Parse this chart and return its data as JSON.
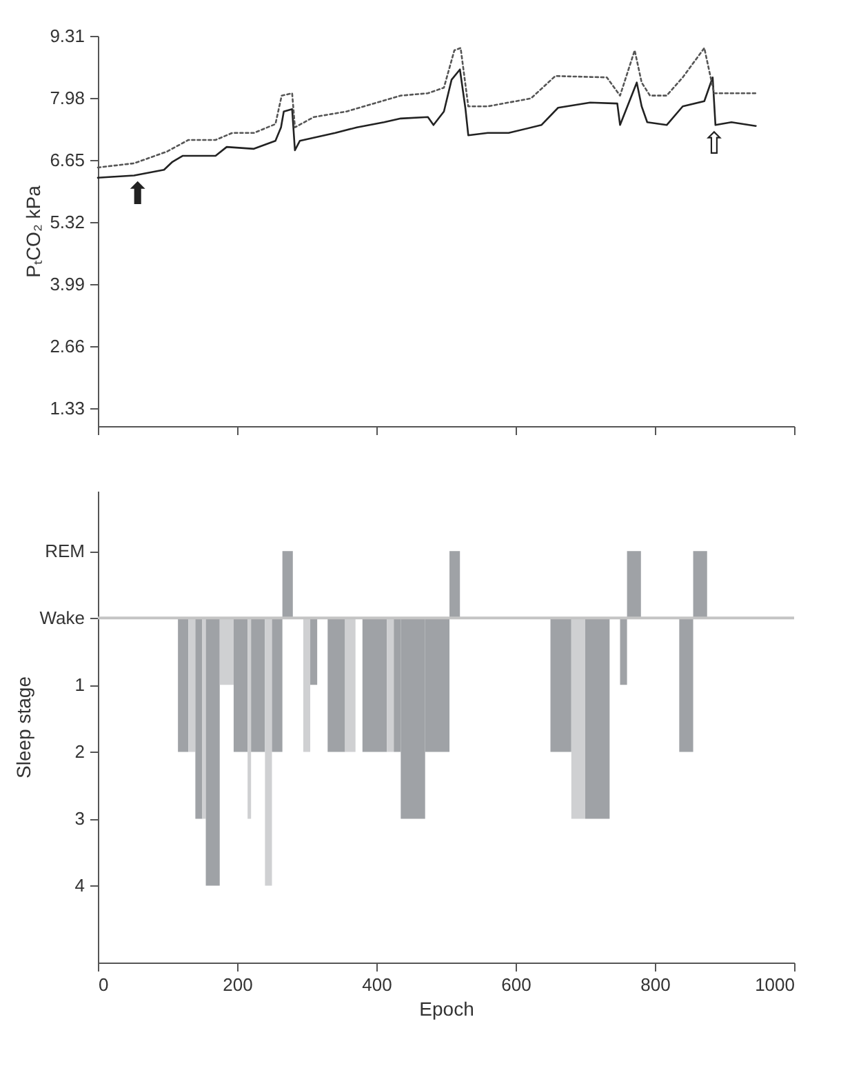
{
  "chart_data": [
    {
      "type": "line",
      "ylabel": "PₜCO₂ kPa",
      "xlim": [
        0,
        1000
      ],
      "xticks": [
        0,
        200,
        400,
        600,
        800,
        1000
      ],
      "ylim": [
        0.95,
        9.31
      ],
      "yticks": [
        1.33,
        2.66,
        3.99,
        5.32,
        6.65,
        7.98,
        9.31
      ],
      "tick_labels": "y",
      "grid": false,
      "marker": "none",
      "series": [
        {
          "color": "#222222",
          "line_style": "solid",
          "x": [
            0,
            52,
            95,
            107,
            122,
            169,
            185,
            224,
            255,
            263,
            267,
            279,
            283,
            290,
            341,
            372,
            411,
            435,
            474,
            482,
            497,
            508,
            520,
            528,
            532,
            560,
            590,
            637,
            661,
            707,
            746,
            750,
            774,
            781,
            789,
            817,
            840,
            871,
            883,
            887,
            910,
            945
          ],
          "values": [
            6.27,
            6.32,
            6.44,
            6.61,
            6.74,
            6.74,
            6.93,
            6.89,
            7.06,
            7.35,
            7.69,
            7.74,
            6.86,
            7.06,
            7.23,
            7.35,
            7.46,
            7.54,
            7.57,
            7.4,
            7.69,
            8.37,
            8.59,
            7.74,
            7.18,
            7.23,
            7.23,
            7.4,
            7.77,
            7.88,
            7.86,
            7.4,
            8.31,
            7.8,
            7.46,
            7.4,
            7.8,
            7.91,
            8.42,
            7.4,
            7.46,
            7.38
          ]
        },
        {
          "color": "#555555",
          "line_style": "dotted",
          "x": [
            0,
            52,
            99,
            130,
            169,
            193,
            224,
            255,
            264,
            279,
            283,
            310,
            357,
            396,
            435,
            474,
            497,
            512,
            521,
            532,
            560,
            622,
            657,
            731,
            750,
            771,
            781,
            793,
            817,
            840,
            871,
            885,
            945
          ],
          "values": [
            6.49,
            6.58,
            6.83,
            7.08,
            7.08,
            7.23,
            7.23,
            7.42,
            8.03,
            8.08,
            7.35,
            7.57,
            7.69,
            7.86,
            8.03,
            8.08,
            8.2,
            9.0,
            9.05,
            7.8,
            7.8,
            7.97,
            8.45,
            8.42,
            8.03,
            9.0,
            8.31,
            8.03,
            8.03,
            8.42,
            9.05,
            8.08,
            8.08
          ]
        }
      ],
      "annotations": [
        {
          "text": "⬆",
          "x": 57,
          "y": 6.32
        },
        {
          "text": "⇧",
          "x": 885,
          "y": 7.4
        }
      ]
    },
    {
      "type": "histogram",
      "xlabel": "Epoch",
      "ylabel": "Sleep stage",
      "xlim": [
        0,
        1000
      ],
      "xticks": [
        0,
        200,
        400,
        600,
        800,
        1000
      ],
      "ylim": [
        -5.15,
        1.9
      ],
      "yticks": [
        {
          "value": 1,
          "label": "REM"
        },
        {
          "value": 0,
          "label": "Wake"
        },
        {
          "value": -1,
          "label": "1"
        },
        {
          "value": -2,
          "label": "2"
        },
        {
          "value": -3,
          "label": "3"
        },
        {
          "value": -4,
          "label": "4"
        }
      ],
      "grid": false,
      "ref_lines": [
        {
          "axis": "y",
          "value": 0,
          "color": "#c4c4c4"
        }
      ],
      "bins": [
        115,
        130,
        140,
        150,
        155,
        175,
        195,
        215,
        220,
        240,
        250,
        265,
        280,
        295,
        305,
        315,
        330,
        355,
        370,
        380,
        415,
        425,
        435,
        470,
        505,
        520,
        650,
        680,
        700,
        735,
        750,
        760,
        780,
        835,
        855,
        875
      ],
      "values": [
        -2,
        -2,
        -3,
        -3,
        -4,
        -1,
        -2,
        -3,
        -2,
        -4,
        -2,
        1,
        null,
        -2,
        -1,
        null,
        -2,
        -2,
        null,
        -2,
        -2,
        -2,
        -3,
        -2,
        1,
        null,
        -2,
        -3,
        -3,
        null,
        -1,
        1,
        null,
        -2,
        1
      ],
      "colors": [
        "#9fa2a6",
        "#cfd0d2",
        "#9fa2a6",
        "#cfd0d2",
        "#9fa2a6",
        "#cfd0d2",
        "#9fa2a6",
        "#cfd0d2",
        "#9fa2a6",
        "#cfd0d2",
        "#9fa2a6",
        "#9fa2a6",
        "#9fa2a6",
        "#cfd0d2",
        "#9fa2a6",
        "#9fa2a6",
        "#9fa2a6",
        "#cfd0d2",
        "#9fa2a6",
        "#9fa2a6",
        "#cfd0d2",
        "#9fa2a6",
        "#9fa2a6",
        "#9fa2a6",
        "#9fa2a6",
        "#9fa2a6",
        "#9fa2a6",
        "#cfd0d2",
        "#9fa2a6",
        "#9fa2a6",
        "#9fa2a6",
        "#9fa2a6",
        "#9fa2a6",
        "#9fa2a6",
        "#9fa2a6"
      ]
    }
  ]
}
